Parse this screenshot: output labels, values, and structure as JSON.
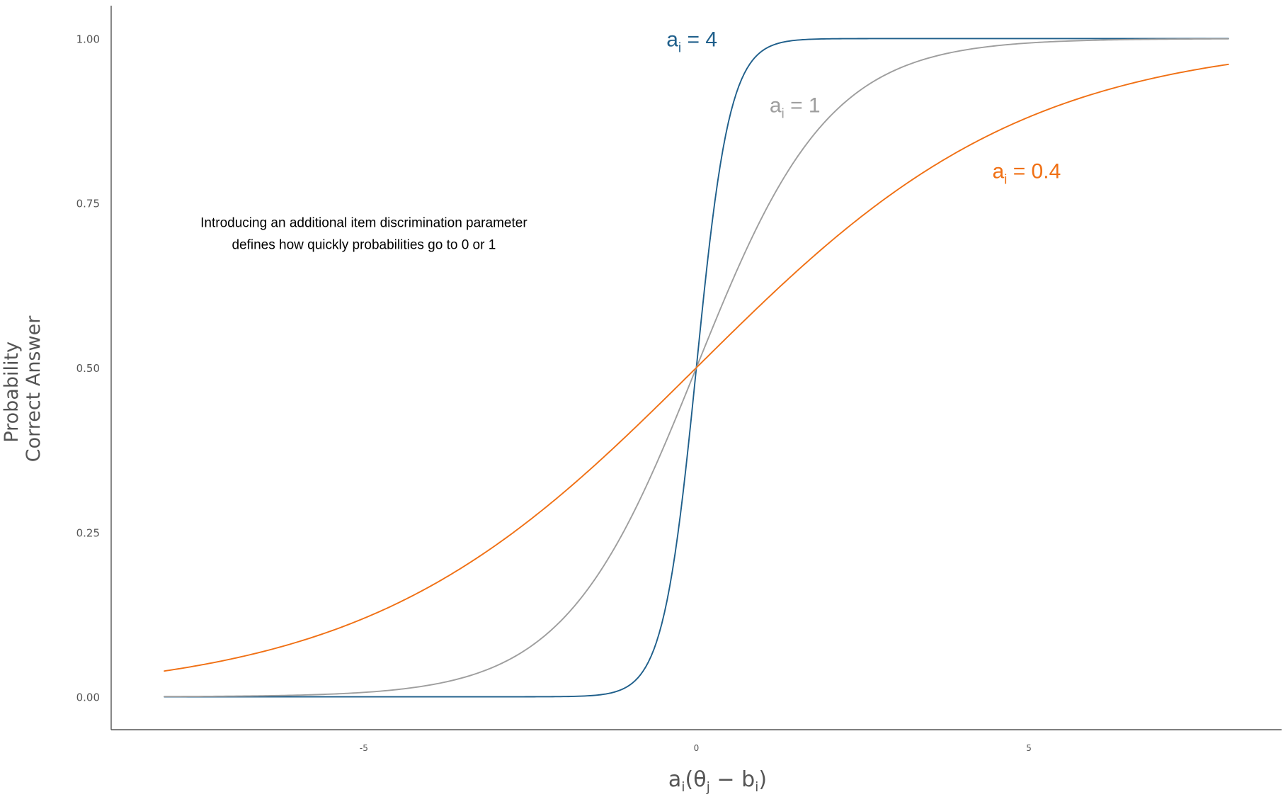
{
  "chart_data": {
    "type": "line",
    "title": "",
    "xlabel": "ai(θj − bi)",
    "xlabel_parts": {
      "main": "a",
      "sub_a": "i",
      "open": "(θ",
      "sub_theta": "j",
      "minus": " − b",
      "sub_b": "i",
      "close": ")"
    },
    "ylabel_lines": [
      "Probability",
      "Correct Answer"
    ],
    "xlim": [
      -8.8,
      8.8
    ],
    "ylim": [
      -0.05,
      1.05
    ],
    "x_ticks": [
      -5,
      0,
      5
    ],
    "x_tick_labels": [
      "-5",
      "0",
      "5"
    ],
    "y_ticks": [
      0,
      0.25,
      0.5,
      0.75,
      1
    ],
    "y_tick_labels": [
      "0.00",
      "0.25",
      "0.50",
      "0.75",
      "1.00"
    ],
    "grid": false,
    "x_domain": [
      -8,
      8
    ],
    "series": [
      {
        "name": "ai = 4",
        "label_main": "a",
        "label_sub": "i",
        "label_rest": " = 4",
        "discrimination": 4,
        "color": "#1f5f8b",
        "label_x": -0.45,
        "label_y": 1.0
      },
      {
        "name": "ai = 1",
        "label_main": "a",
        "label_sub": "i",
        "label_rest": " = 1",
        "discrimination": 1,
        "color": "#9e9e9e",
        "label_x": 1.1,
        "label_y": 0.9
      },
      {
        "name": "ai = 0.4",
        "label_main": "a",
        "label_sub": "i",
        "label_rest": " = 0.4",
        "discrimination": 0.4,
        "color": "#f07014",
        "label_x": 4.45,
        "label_y": 0.8
      }
    ],
    "annotation": {
      "lines": [
        "Introducing an additional item discrimination parameter",
        "defines how quickly probabilities go to 0 or 1"
      ],
      "x": -5,
      "y": 0.72
    }
  }
}
